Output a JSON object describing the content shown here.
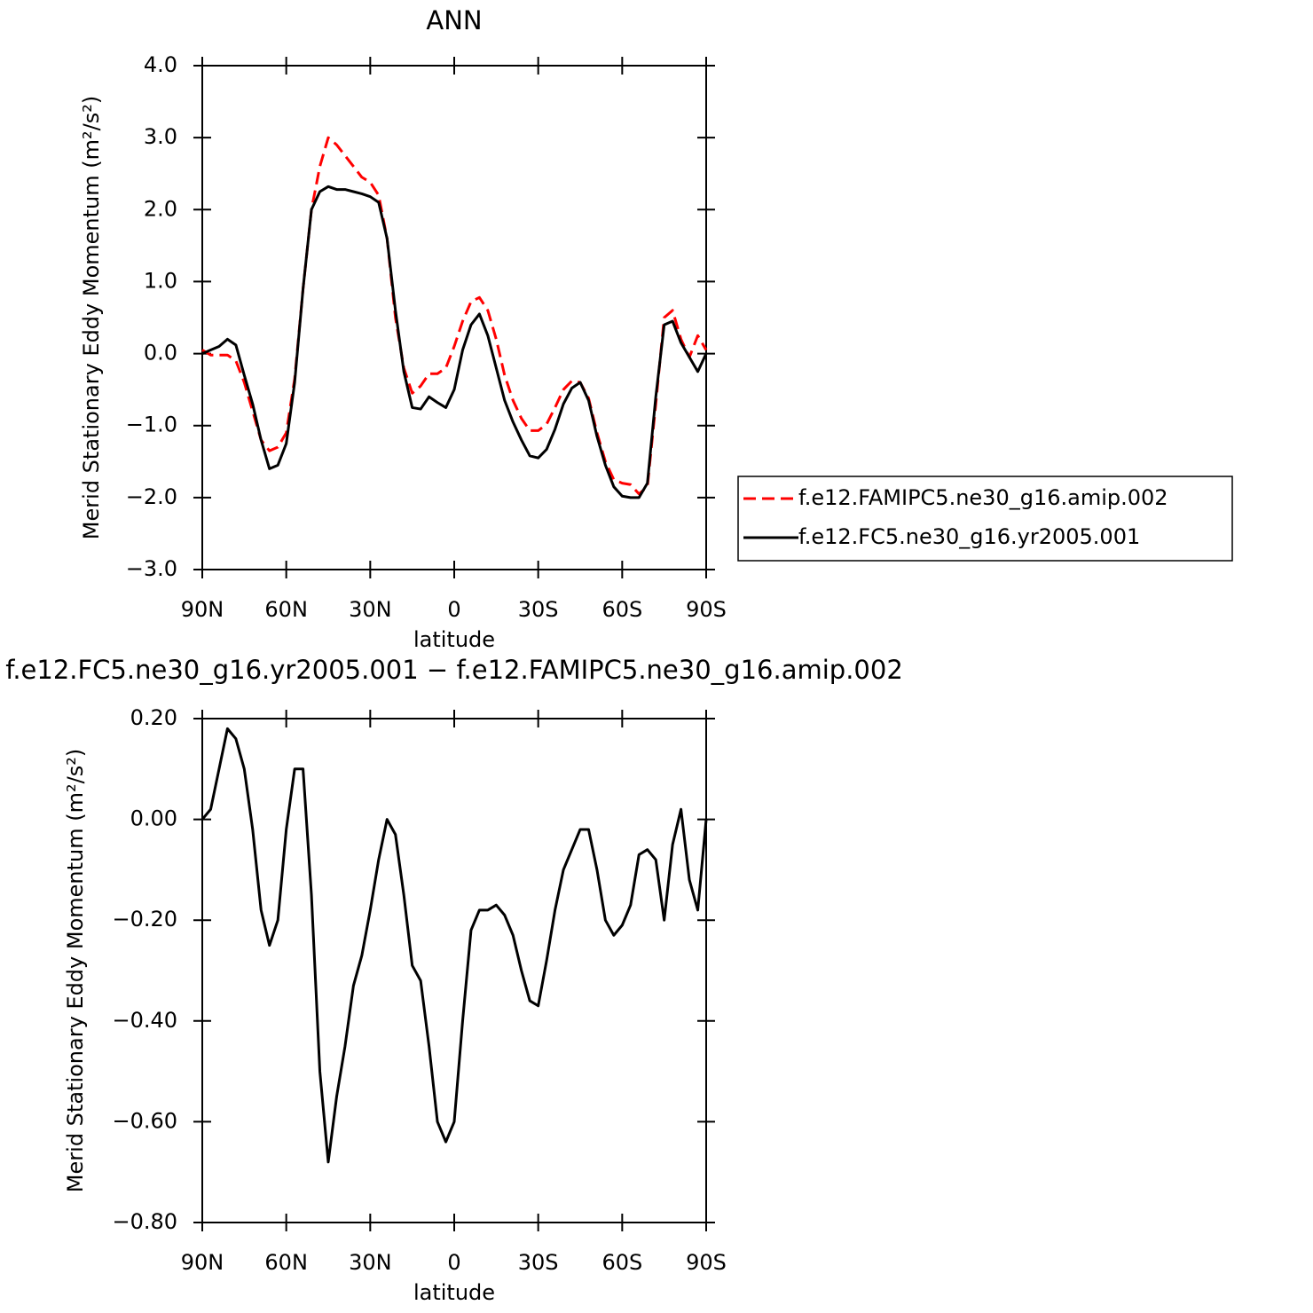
{
  "chart_data": [
    {
      "type": "line",
      "title": "ANN",
      "xlabel": "latitude",
      "ylabel": "Merid Stationary Eddy Momentum (m²/s²)",
      "x": [
        90,
        87,
        84,
        81,
        78,
        75,
        72,
        69,
        66,
        63,
        60,
        57,
        54,
        51,
        48,
        45,
        42,
        39,
        36,
        33,
        30,
        27,
        24,
        21,
        18,
        15,
        12,
        9,
        6,
        3,
        0,
        -3,
        -6,
        -9,
        -12,
        -15,
        -18,
        -21,
        -24,
        -27,
        -30,
        -33,
        -36,
        -39,
        -42,
        -45,
        -48,
        -51,
        -54,
        -57,
        -60,
        -63,
        -66,
        -69,
        -72,
        -75,
        -78,
        -81,
        -84,
        -87,
        -90
      ],
      "xlim": [
        90,
        -90
      ],
      "xticks": [
        {
          "value": 90,
          "label": "90N"
        },
        {
          "value": 60,
          "label": "60N"
        },
        {
          "value": 30,
          "label": "30N"
        },
        0,
        {
          "value": -30,
          "label": "30S"
        },
        {
          "value": -60,
          "label": "60S"
        },
        {
          "value": -90,
          "label": "90S"
        }
      ],
      "ylim": [
        -3,
        4
      ],
      "yticks": [
        {
          "value": 4,
          "label": "4.0"
        },
        {
          "value": 3,
          "label": "3.0"
        },
        {
          "value": 2,
          "label": "2.0"
        },
        {
          "value": 1,
          "label": "1.0"
        },
        {
          "value": 0,
          "label": "0.0"
        },
        {
          "value": -1,
          "label": "−1.0"
        },
        {
          "value": -2,
          "label": "−2.0"
        },
        {
          "value": -3,
          "label": "−3.0"
        }
      ],
      "legend": "right",
      "series": [
        {
          "name": "f.e12.FAMIPC5.ne30_g16.amip.002",
          "color": "#ff0000",
          "dash": "dashed",
          "values": [
            0.05,
            -0.02,
            -0.02,
            -0.02,
            -0.1,
            -0.4,
            -0.8,
            -1.2,
            -1.35,
            -1.3,
            -1.1,
            -0.35,
            0.9,
            2.0,
            2.6,
            3.0,
            2.9,
            2.75,
            2.6,
            2.45,
            2.38,
            2.2,
            1.6,
            0.5,
            -0.2,
            -0.55,
            -0.45,
            -0.28,
            -0.28,
            -0.2,
            0.1,
            0.45,
            0.72,
            0.78,
            0.6,
            0.2,
            -0.3,
            -0.65,
            -0.9,
            -1.07,
            -1.07,
            -0.98,
            -0.75,
            -0.5,
            -0.38,
            -0.4,
            -0.62,
            -1.1,
            -1.5,
            -1.75,
            -1.8,
            -1.82,
            -1.95,
            -1.85,
            -0.7,
            0.5,
            0.6,
            0.2,
            -0.05,
            0.25,
            0.05
          ]
        },
        {
          "name": "f.e12.FC5.ne30_g16.yr2005.001",
          "color": "#000000",
          "dash": "solid",
          "values": [
            0.0,
            0.05,
            0.1,
            0.2,
            0.12,
            -0.3,
            -0.7,
            -1.2,
            -1.6,
            -1.55,
            -1.25,
            -0.4,
            0.9,
            2.0,
            2.25,
            2.32,
            2.28,
            2.28,
            2.25,
            2.22,
            2.18,
            2.1,
            1.6,
            0.6,
            -0.25,
            -0.75,
            -0.77,
            -0.6,
            -0.68,
            -0.75,
            -0.5,
            0.05,
            0.4,
            0.55,
            0.25,
            -0.2,
            -0.65,
            -0.95,
            -1.2,
            -1.42,
            -1.45,
            -1.33,
            -1.05,
            -0.7,
            -0.48,
            -0.4,
            -0.65,
            -1.15,
            -1.55,
            -1.85,
            -1.98,
            -2.0,
            -2.0,
            -1.8,
            -0.6,
            0.4,
            0.45,
            0.15,
            -0.05,
            -0.25,
            0.0
          ]
        }
      ]
    },
    {
      "type": "line",
      "title": "f.e12.FC5.ne30_g16.yr2005.001 − f.e12.FAMIPC5.ne30_g16.amip.002",
      "xlabel": "latitude",
      "ylabel": "Merid Stationary Eddy Momentum (m²/s²)",
      "x": [
        90,
        87,
        84,
        81,
        78,
        75,
        72,
        69,
        66,
        63,
        60,
        57,
        54,
        51,
        48,
        45,
        42,
        39,
        36,
        33,
        30,
        27,
        24,
        21,
        18,
        15,
        12,
        9,
        6,
        3,
        0,
        -3,
        -6,
        -9,
        -12,
        -15,
        -18,
        -21,
        -24,
        -27,
        -30,
        -33,
        -36,
        -39,
        -42,
        -45,
        -48,
        -51,
        -54,
        -57,
        -60,
        -63,
        -66,
        -69,
        -72,
        -75,
        -78,
        -81,
        -84,
        -87,
        -90
      ],
      "xlim": [
        90,
        -90
      ],
      "xticks": [
        {
          "value": 90,
          "label": "90N"
        },
        {
          "value": 60,
          "label": "60N"
        },
        {
          "value": 30,
          "label": "30N"
        },
        0,
        {
          "value": -30,
          "label": "30S"
        },
        {
          "value": -60,
          "label": "60S"
        },
        {
          "value": -90,
          "label": "90S"
        }
      ],
      "ylim": [
        -0.8,
        0.2
      ],
      "yticks": [
        {
          "value": 0.2,
          "label": "0.20"
        },
        {
          "value": 0,
          "label": "0.00"
        },
        {
          "value": -0.2,
          "label": "−0.20"
        },
        {
          "value": -0.4,
          "label": "−0.40"
        },
        {
          "value": -0.6,
          "label": "−0.60"
        },
        {
          "value": -0.8,
          "label": "−0.80"
        }
      ],
      "series": [
        {
          "color": "#000000",
          "dash": "solid",
          "values": [
            0.0,
            0.02,
            0.1,
            0.18,
            0.16,
            0.1,
            -0.02,
            -0.18,
            -0.25,
            -0.2,
            -0.02,
            0.1,
            0.1,
            -0.15,
            -0.5,
            -0.68,
            -0.55,
            -0.45,
            -0.33,
            -0.27,
            -0.18,
            -0.08,
            0.0,
            -0.03,
            -0.15,
            -0.29,
            -0.32,
            -0.45,
            -0.6,
            -0.64,
            -0.6,
            -0.4,
            -0.22,
            -0.18,
            -0.18,
            -0.17,
            -0.19,
            -0.23,
            -0.3,
            -0.36,
            -0.37,
            -0.28,
            -0.18,
            -0.1,
            -0.06,
            -0.02,
            -0.02,
            -0.1,
            -0.2,
            -0.23,
            -0.21,
            -0.17,
            -0.07,
            -0.06,
            -0.08,
            -0.2,
            -0.05,
            0.02,
            -0.12,
            -0.18,
            0.0
          ]
        }
      ]
    }
  ]
}
